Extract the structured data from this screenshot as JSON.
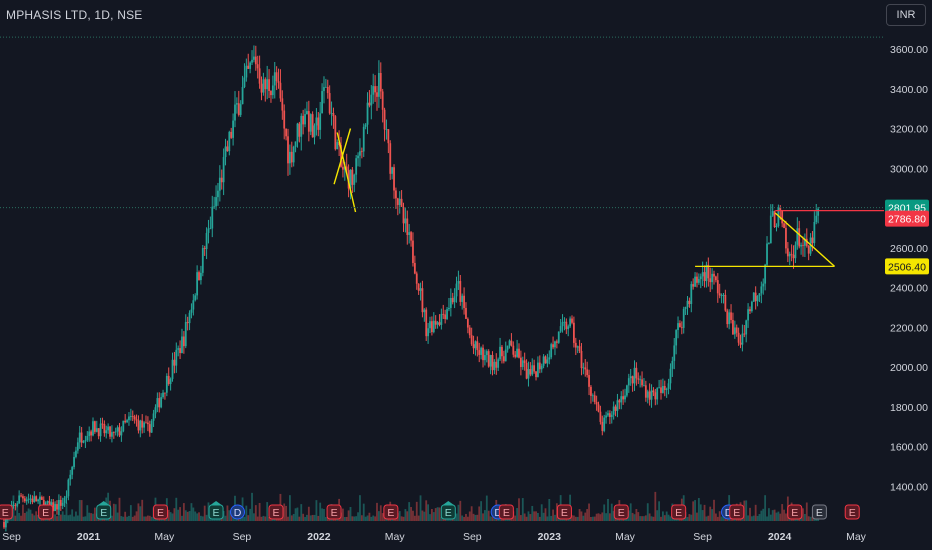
{
  "header": {
    "title": "MPHASIS LTD, 1D, NSE",
    "currency": "INR"
  },
  "colors": {
    "background": "#131722",
    "up": "#26a69a",
    "down": "#ef5350",
    "trendline": "#f5e600",
    "resistance": "#f23645",
    "dotted": "#2a6e5f"
  },
  "chart_data": {
    "type": "candlestick",
    "title": "MPHASIS LTD, 1D, NSE",
    "currency": "INR",
    "ylim": [
      1220,
      3680
    ],
    "y_ticks": [
      3600,
      3400,
      3200,
      3000,
      2800,
      2600,
      2400,
      2200,
      2000,
      1800,
      1600,
      1400
    ],
    "y_tick_labels": [
      "3600.00",
      "3400.00",
      "3200.00",
      "3000.00",
      "2800.00",
      "2600.00",
      "2400.00",
      "2200.00",
      "2000.00",
      "1800.00",
      "1600.00",
      "1400.00"
    ],
    "x_range": [
      "2020-08-20",
      "2024-05-20"
    ],
    "x_ticks": [
      {
        "date": "2020-09-01",
        "label": "Sep",
        "bold": false
      },
      {
        "date": "2021-01-01",
        "label": "2021",
        "bold": true
      },
      {
        "date": "2021-05-01",
        "label": "May",
        "bold": false
      },
      {
        "date": "2021-09-01",
        "label": "Sep",
        "bold": false
      },
      {
        "date": "2022-01-01",
        "label": "2022",
        "bold": true
      },
      {
        "date": "2022-05-01",
        "label": "May",
        "bold": false
      },
      {
        "date": "2022-09-01",
        "label": "Sep",
        "bold": false
      },
      {
        "date": "2023-01-01",
        "label": "2023",
        "bold": true
      },
      {
        "date": "2023-05-01",
        "label": "May",
        "bold": false
      },
      {
        "date": "2023-09-01",
        "label": "Sep",
        "bold": false
      },
      {
        "date": "2024-01-01",
        "label": "2024",
        "bold": true
      },
      {
        "date": "2024-05-01",
        "label": "May",
        "bold": false
      }
    ],
    "price_path": [
      [
        "2020-08-20",
        1220
      ],
      [
        "2020-09-15",
        1350
      ],
      [
        "2020-10-10",
        1330
      ],
      [
        "2020-11-05",
        1290
      ],
      [
        "2020-11-25",
        1330
      ],
      [
        "2020-12-15",
        1640
      ],
      [
        "2021-01-10",
        1700
      ],
      [
        "2021-02-10",
        1650
      ],
      [
        "2021-03-10",
        1740
      ],
      [
        "2021-04-05",
        1680
      ],
      [
        "2021-05-01",
        1900
      ],
      [
        "2021-06-01",
        2150
      ],
      [
        "2021-07-01",
        2560
      ],
      [
        "2021-08-01",
        2980
      ],
      [
        "2021-08-25",
        3320
      ],
      [
        "2021-09-10",
        3460
      ],
      [
        "2021-09-22",
        3560
      ],
      [
        "2021-10-05",
        3400
      ],
      [
        "2021-10-25",
        3450
      ],
      [
        "2021-11-15",
        3050
      ],
      [
        "2021-12-10",
        3300
      ],
      [
        "2021-12-25",
        3150
      ],
      [
        "2022-01-12",
        3430
      ],
      [
        "2022-02-05",
        3000
      ],
      [
        "2022-02-25",
        2930
      ],
      [
        "2022-03-15",
        3230
      ],
      [
        "2022-04-05",
        3440
      ],
      [
        "2022-04-20",
        3100
      ],
      [
        "2022-05-10",
        2780
      ],
      [
        "2022-06-01",
        2540
      ],
      [
        "2022-06-20",
        2200
      ],
      [
        "2022-07-15",
        2260
      ],
      [
        "2022-08-10",
        2400
      ],
      [
        "2022-09-01",
        2100
      ],
      [
        "2022-10-01",
        2020
      ],
      [
        "2022-11-01",
        2100
      ],
      [
        "2022-12-01",
        1950
      ],
      [
        "2023-01-01",
        2080
      ],
      [
        "2023-02-01",
        2230
      ],
      [
        "2023-02-15",
        2080
      ],
      [
        "2023-03-10",
        1870
      ],
      [
        "2023-03-25",
        1690
      ],
      [
        "2023-04-15",
        1800
      ],
      [
        "2023-05-15",
        1960
      ],
      [
        "2023-06-10",
        1860
      ],
      [
        "2023-07-05",
        1880
      ],
      [
        "2023-07-20",
        2150
      ],
      [
        "2023-08-15",
        2400
      ],
      [
        "2023-09-05",
        2490
      ],
      [
        "2023-09-25",
        2400
      ],
      [
        "2023-10-15",
        2220
      ],
      [
        "2023-10-30",
        2120
      ],
      [
        "2023-11-15",
        2310
      ],
      [
        "2023-12-05",
        2440
      ],
      [
        "2023-12-20",
        2750
      ],
      [
        "2024-01-01",
        2760
      ],
      [
        "2024-01-15",
        2530
      ],
      [
        "2024-01-30",
        2660
      ],
      [
        "2024-02-15",
        2560
      ],
      [
        "2024-03-04",
        2800
      ]
    ],
    "horizontal_levels": [
      {
        "value": 2801.95,
        "label": "2801.95",
        "style": "dotted",
        "color": "#2a6e5f",
        "tag_color": "#089981"
      },
      {
        "value": 2786.8,
        "label": "2786.80",
        "style": "line",
        "color": "#f23645",
        "tag_color": "#f23645",
        "from": "2023-12-25"
      },
      {
        "value": 2506.4,
        "label": "2506.40",
        "style": "line",
        "color": "#f5e600",
        "tag_color": "#f5e600",
        "from": "2023-08-20",
        "to": "2024-03-28"
      }
    ],
    "top_dotted_level": 3660,
    "trendlines": [
      {
        "points": [
          [
            "2023-12-25",
            2775
          ],
          [
            "2024-03-28",
            2506.4
          ]
        ],
        "color": "#f5e600"
      },
      {
        "points": [
          [
            "2022-01-30",
            3180
          ],
          [
            "2022-02-28",
            2780
          ]
        ],
        "color": "#f5e600"
      },
      {
        "points": [
          [
            "2022-01-25",
            2920
          ],
          [
            "2022-02-20",
            3200
          ]
        ],
        "color": "#f5e600"
      }
    ],
    "markers": [
      {
        "date": "2020-08-22",
        "label": "E",
        "kind": "earnings"
      },
      {
        "date": "2020-10-25",
        "label": "E",
        "kind": "earnings"
      },
      {
        "date": "2021-01-25",
        "label": "E",
        "kind": "earnings-up"
      },
      {
        "date": "2021-04-25",
        "label": "E",
        "kind": "earnings"
      },
      {
        "date": "2021-07-22",
        "label": "E",
        "kind": "earnings-up"
      },
      {
        "date": "2021-08-25",
        "label": "D",
        "kind": "dividend"
      },
      {
        "date": "2021-10-25",
        "label": "E",
        "kind": "earnings"
      },
      {
        "date": "2022-01-25",
        "label": "E",
        "kind": "earnings"
      },
      {
        "date": "2022-04-25",
        "label": "E",
        "kind": "earnings"
      },
      {
        "date": "2022-07-25",
        "label": "E",
        "kind": "earnings-up"
      },
      {
        "date": "2022-10-12",
        "label": "D",
        "kind": "dividend"
      },
      {
        "date": "2022-10-25",
        "label": "E",
        "kind": "earnings"
      },
      {
        "date": "2023-01-25",
        "label": "E",
        "kind": "earnings"
      },
      {
        "date": "2023-04-25",
        "label": "E",
        "kind": "earnings"
      },
      {
        "date": "2023-07-25",
        "label": "E",
        "kind": "earnings"
      },
      {
        "date": "2023-10-12",
        "label": "D",
        "kind": "dividend"
      },
      {
        "date": "2023-10-25",
        "label": "E",
        "kind": "earnings"
      },
      {
        "date": "2024-01-25",
        "label": "E",
        "kind": "earnings"
      },
      {
        "date": "2024-03-04",
        "label": "E",
        "kind": "earnings-pending"
      },
      {
        "date": "2024-04-25",
        "label": "E",
        "kind": "earnings"
      }
    ]
  }
}
